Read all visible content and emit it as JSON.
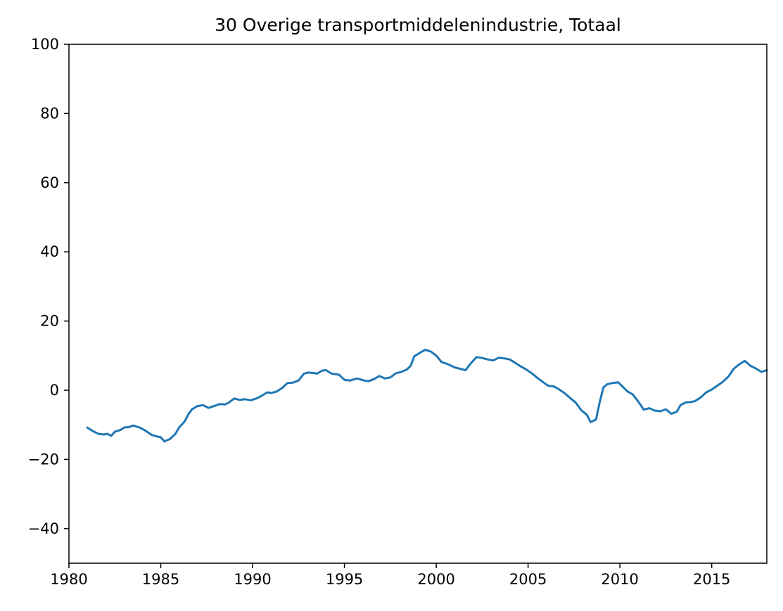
{
  "chart_data": {
    "type": "line",
    "title": "30 Overige transportmiddelenindustrie, Totaal",
    "xlabel": "",
    "ylabel": "",
    "xlim": [
      1980,
      2018
    ],
    "ylim": [
      -50,
      100
    ],
    "xticks": [
      1980,
      1985,
      1990,
      1995,
      2000,
      2005,
      2010,
      2015
    ],
    "xtick_labels": [
      "1980",
      "1985",
      "1990",
      "1995",
      "2000",
      "2005",
      "2010",
      "2015"
    ],
    "yticks": [
      -40,
      -20,
      0,
      20,
      40,
      60,
      80,
      100
    ],
    "ytick_labels": [
      "−40",
      "−20",
      "0",
      "20",
      "40",
      "60",
      "80",
      "100"
    ],
    "grid": false,
    "legend": false,
    "series": [
      {
        "color": "#1f77b4",
        "x": [
          1981.0,
          1981.3,
          1981.6,
          1981.9,
          1982.1,
          1982.3,
          1982.5,
          1982.8,
          1983.0,
          1983.3,
          1983.5,
          1983.9,
          1984.2,
          1984.5,
          1984.8,
          1985.0,
          1985.2,
          1985.5,
          1985.8,
          1986.0,
          1986.3,
          1986.5,
          1986.7,
          1987.0,
          1987.3,
          1987.6,
          1987.9,
          1988.2,
          1988.5,
          1988.7,
          1989.0,
          1989.3,
          1989.6,
          1989.9,
          1990.2,
          1990.5,
          1990.8,
          1991.0,
          1991.3,
          1991.6,
          1991.9,
          1992.2,
          1992.5,
          1992.8,
          1993.0,
          1993.3,
          1993.5,
          1993.8,
          1994.0,
          1994.3,
          1994.7,
          1995.0,
          1995.3,
          1995.7,
          1996.0,
          1996.3,
          1996.6,
          1996.9,
          1997.2,
          1997.5,
          1997.8,
          1998.1,
          1998.4,
          1998.6,
          1998.8,
          1999.1,
          1999.4,
          1999.7,
          2000.0,
          2000.3,
          2000.6,
          2001.0,
          2001.3,
          2001.6,
          2001.9,
          2002.2,
          2002.5,
          2002.8,
          2003.1,
          2003.4,
          2003.7,
          2004.0,
          2004.3,
          2004.6,
          2004.9,
          2005.2,
          2005.5,
          2005.8,
          2006.1,
          2006.4,
          2006.7,
          2007.0,
          2007.3,
          2007.6,
          2007.9,
          2008.2,
          2008.4,
          2008.7,
          2008.9,
          2009.1,
          2009.3,
          2009.6,
          2009.9,
          2010.1,
          2010.4,
          2010.7,
          2011.0,
          2011.3,
          2011.6,
          2011.9,
          2012.2,
          2012.5,
          2012.8,
          2013.1,
          2013.3,
          2013.6,
          2013.9,
          2014.1,
          2014.4,
          2014.7,
          2015.0,
          2015.3,
          2015.6,
          2015.9,
          2016.2,
          2016.5,
          2016.8,
          2017.1,
          2017.4,
          2017.7,
          2018.0
        ],
        "y": [
          -10.8,
          -11.8,
          -12.6,
          -12.8,
          -12.6,
          -13.2,
          -12.0,
          -11.5,
          -10.8,
          -10.6,
          -10.2,
          -10.9,
          -11.8,
          -12.9,
          -13.4,
          -13.6,
          -14.8,
          -14.1,
          -12.6,
          -10.8,
          -9.0,
          -7.0,
          -5.5,
          -4.6,
          -4.3,
          -5.1,
          -4.6,
          -4.0,
          -4.1,
          -3.6,
          -2.4,
          -2.8,
          -2.6,
          -2.9,
          -2.4,
          -1.6,
          -0.6,
          -0.8,
          -0.4,
          0.6,
          2.1,
          2.2,
          2.8,
          4.8,
          5.1,
          5.0,
          4.8,
          5.7,
          5.8,
          4.8,
          4.5,
          3.0,
          2.8,
          3.4,
          2.9,
          2.6,
          3.2,
          4.1,
          3.4,
          3.7,
          4.9,
          5.3,
          6.0,
          7.0,
          9.8,
          10.8,
          11.7,
          11.2,
          10.0,
          8.1,
          7.6,
          6.6,
          6.2,
          5.8,
          7.9,
          9.6,
          9.3,
          8.9,
          8.6,
          9.4,
          9.2,
          8.9,
          7.9,
          6.9,
          6.0,
          4.9,
          3.6,
          2.4,
          1.3,
          1.1,
          0.2,
          -0.9,
          -2.3,
          -3.6,
          -5.8,
          -7.1,
          -9.2,
          -8.5,
          -3.5,
          0.8,
          1.7,
          2.1,
          2.3,
          1.3,
          -0.3,
          -1.2,
          -3.3,
          -5.6,
          -5.2,
          -5.9,
          -6.1,
          -5.5,
          -6.8,
          -6.2,
          -4.3,
          -3.5,
          -3.4,
          -3.1,
          -2.1,
          -0.6,
          0.2,
          1.3,
          2.4,
          3.9,
          6.2,
          7.5,
          8.5,
          7.1,
          6.3,
          5.3,
          5.8
        ]
      }
    ]
  }
}
